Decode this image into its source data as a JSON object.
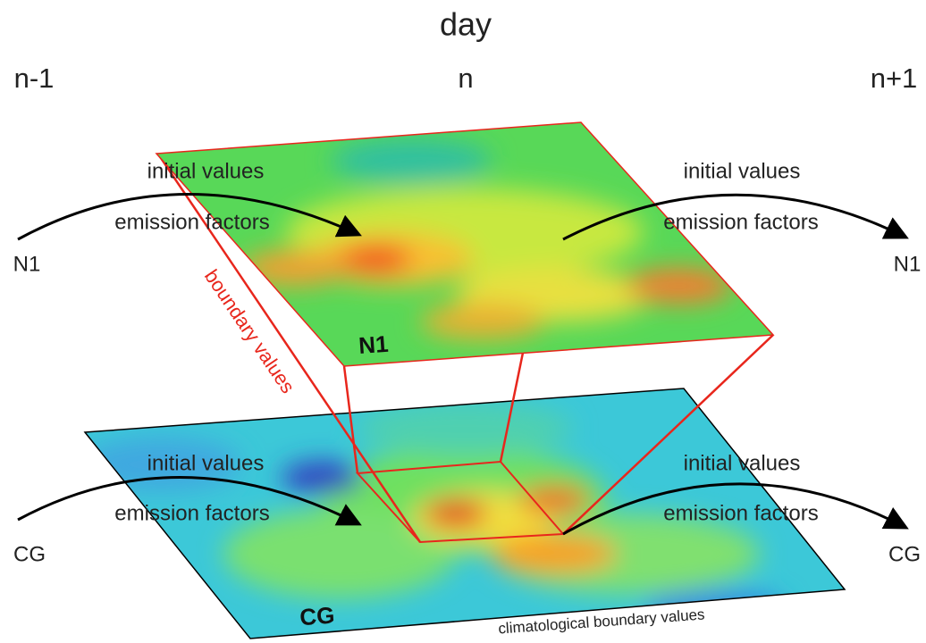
{
  "title": "day",
  "columns": [
    "n-1",
    "n",
    "n+1"
  ],
  "layers": [
    {
      "map_label": "N1",
      "in_label": "N1",
      "out_label": "N1",
      "incoming": [
        "initial values",
        "emission factors"
      ],
      "outgoing": [
        "initial values",
        "emission factors"
      ]
    },
    {
      "map_label": "CG",
      "in_label": "CG",
      "out_label": "CG",
      "incoming": [
        "initial values",
        "emission factors"
      ],
      "outgoing": [
        "initial values",
        "emission factors"
      ]
    }
  ],
  "boundary_label": "boundary values",
  "climatology_label": "climatological boundary values"
}
